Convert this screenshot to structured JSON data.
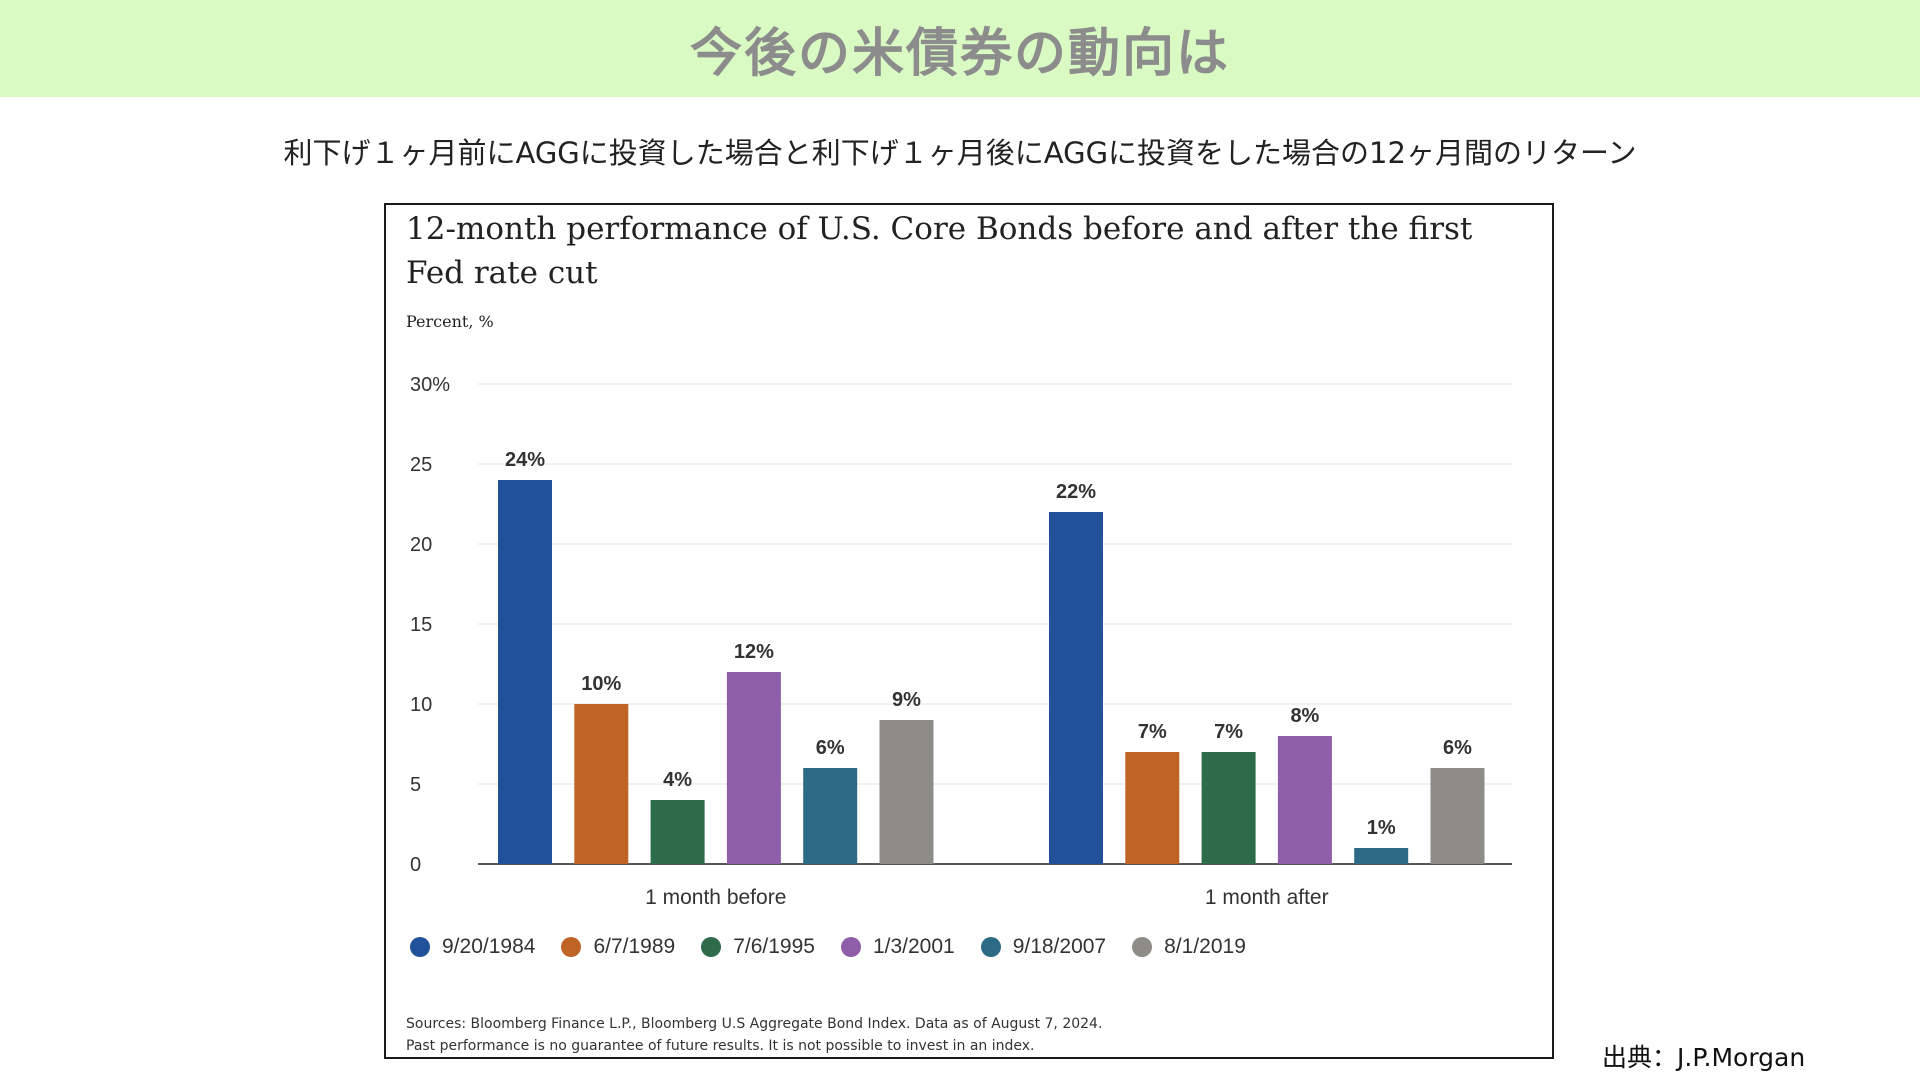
{
  "slide": {
    "title": "今後の米債券の動向は",
    "subtitle": "利下げ１ヶ月前にAGGに投資した場合と利下げ１ヶ月後にAGGに投資をした場合の12ヶ月間のリターン",
    "credit": "出典：J.P.Morgan"
  },
  "chart_data": {
    "type": "bar",
    "title": "12-month performance of U.S. Core Bonds before and after the first Fed rate cut",
    "unit_label": "Percent, %",
    "categories": [
      "1 month before",
      "1 month after"
    ],
    "y_ticks": [
      "30%",
      "25",
      "20",
      "15",
      "10",
      "5",
      "0"
    ],
    "ylim": [
      0,
      30
    ],
    "grid": true,
    "legend_position": "bottom",
    "series": [
      {
        "name": "9/20/1984",
        "color": "#21519a",
        "values": [
          24,
          22
        ],
        "labels": [
          "24%",
          "22%"
        ]
      },
      {
        "name": "6/7/1989",
        "color": "#c06426",
        "values": [
          10,
          7
        ],
        "labels": [
          "10%",
          "7%"
        ]
      },
      {
        "name": "7/6/1995",
        "color": "#2e6b4a",
        "values": [
          4,
          7
        ],
        "labels": [
          "4%",
          "7%"
        ]
      },
      {
        "name": "1/3/2001",
        "color": "#8e5ea9",
        "values": [
          12,
          8
        ],
        "labels": [
          "12%",
          "8%"
        ]
      },
      {
        "name": "9/18/2007",
        "color": "#2d6a86",
        "values": [
          6,
          1
        ],
        "labels": [
          "6%",
          "1%"
        ]
      },
      {
        "name": "8/1/2019",
        "color": "#8e8c87",
        "values": [
          9,
          6
        ],
        "labels": [
          "9%",
          "6%"
        ]
      }
    ],
    "sources": [
      "Sources: Bloomberg Finance L.P., Bloomberg U.S Aggregate Bond Index. Data as of August 7, 2024.",
      "Past performance is no guarantee of future results. It is not possible to invest in an index."
    ]
  }
}
